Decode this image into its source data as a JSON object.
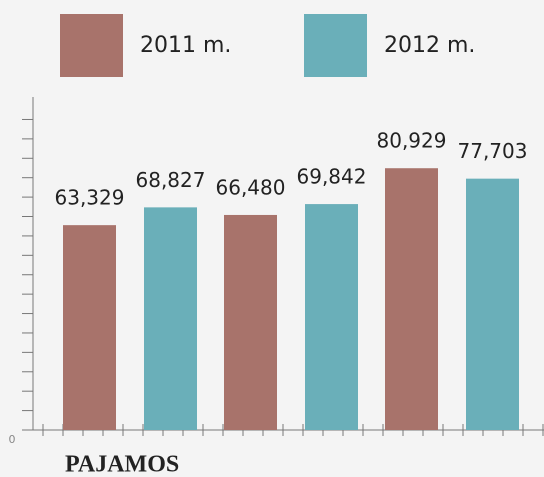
{
  "chart_data": {
    "type": "bar",
    "x_label": "PAJAMOS",
    "categories": [
      null,
      null,
      null
    ],
    "series": [
      {
        "name": "2011 m.",
        "color": "#a8736b",
        "values": [
          63329,
          66480,
          80929
        ],
        "value_labels": [
          "63,329",
          "66,480",
          "80,929"
        ]
      },
      {
        "name": "2012 m.",
        "color": "#6aafb9",
        "values": [
          68827,
          69842,
          77703
        ],
        "value_labels": [
          "68,827",
          "69,842",
          "77,703"
        ]
      }
    ],
    "ylim": [
      0,
      98000
    ],
    "yticks": [
      0
    ],
    "minor_yticks": [
      6000,
      12000,
      18000,
      24000,
      30000,
      36000,
      42000,
      48000,
      54000,
      60000,
      66000,
      72000,
      78000,
      84000,
      90000,
      96000
    ],
    "legend": "top"
  }
}
